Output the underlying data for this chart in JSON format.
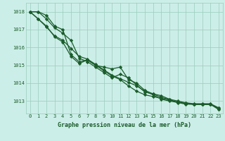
{
  "title": "Graphe pression niveau de la mer (hPa)",
  "bg_color": "#cceee8",
  "grid_color": "#99ccbb",
  "line_color": "#1a5c2a",
  "marker": "D",
  "marker_size": 2.2,
  "line_width": 0.9,
  "xlim": [
    -0.5,
    23.5
  ],
  "ylim": [
    1012.3,
    1018.5
  ],
  "yticks": [
    1013,
    1014,
    1015,
    1016,
    1017,
    1018
  ],
  "xticks": [
    0,
    1,
    2,
    3,
    4,
    5,
    6,
    7,
    8,
    9,
    10,
    11,
    12,
    13,
    14,
    15,
    16,
    17,
    18,
    19,
    20,
    21,
    22,
    23
  ],
  "series": [
    [
      1018.0,
      1018.0,
      1017.8,
      1017.2,
      1017.0,
      1015.6,
      1015.2,
      1015.3,
      1015.0,
      1014.9,
      1014.8,
      1014.9,
      1014.2,
      1014.0,
      1013.6,
      1013.4,
      1013.3,
      1013.1,
      1012.9,
      1012.9,
      1012.8,
      1012.8,
      1012.8,
      1012.6
    ],
    [
      1018.0,
      1018.0,
      1017.6,
      1017.1,
      1016.8,
      1016.4,
      1015.4,
      1015.2,
      1014.9,
      1014.6,
      1014.3,
      1014.5,
      1014.3,
      1013.9,
      1013.5,
      1013.4,
      1013.2,
      1013.1,
      1013.0,
      1012.9,
      1012.85,
      1012.85,
      1012.85,
      1012.62
    ],
    [
      1018.0,
      1017.6,
      1017.2,
      1016.6,
      1016.3,
      1015.5,
      1015.1,
      1015.3,
      1015.0,
      1014.7,
      1014.4,
      1014.2,
      1013.85,
      1013.55,
      1013.35,
      1013.25,
      1013.15,
      1013.05,
      1012.95,
      1012.85,
      1012.82,
      1012.82,
      1012.82,
      1012.55
    ],
    [
      1018.0,
      1017.6,
      1017.15,
      1016.65,
      1016.4,
      1015.95,
      1015.5,
      1015.35,
      1015.05,
      1014.75,
      1014.45,
      1014.25,
      1014.05,
      1013.85,
      1013.55,
      1013.35,
      1013.1,
      1013.0,
      1012.92,
      1012.82,
      1012.82,
      1012.82,
      1012.82,
      1012.52
    ]
  ]
}
